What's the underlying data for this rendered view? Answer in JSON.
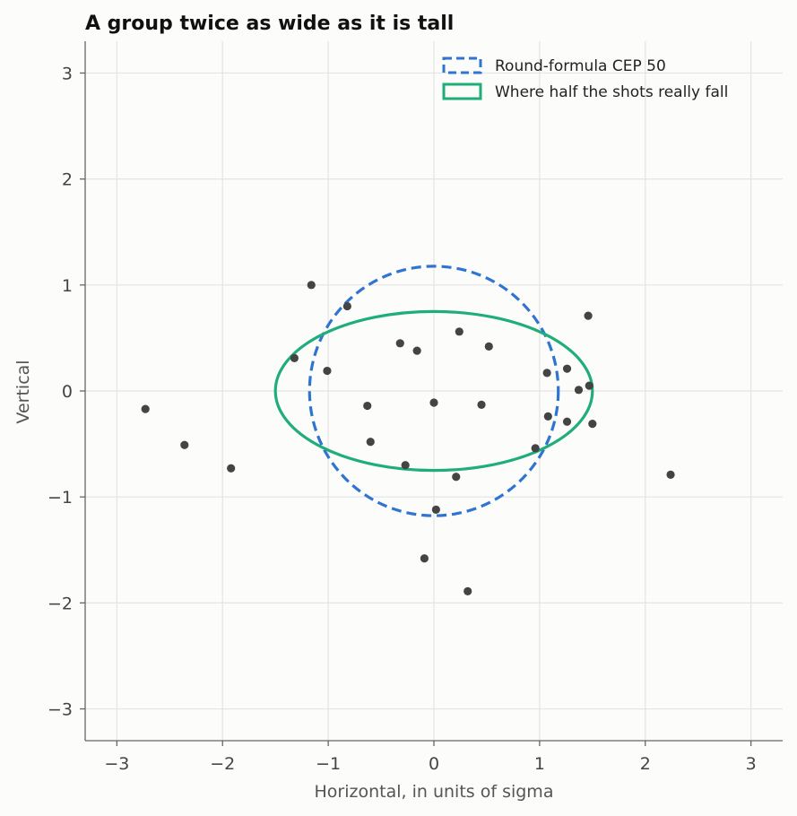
{
  "chart_data": {
    "type": "scatter",
    "title": "A group twice as wide as it is tall",
    "xlabel": "Horizontal, in units of sigma",
    "ylabel": "Vertical",
    "xlim": [
      -3.3,
      3.3
    ],
    "ylim": [
      -3.3,
      3.3
    ],
    "xticks": [
      -3,
      -2,
      -1,
      0,
      1,
      2,
      3
    ],
    "yticks": [
      -3,
      -2,
      -1,
      0,
      1,
      2,
      3
    ],
    "xtick_labels": [
      "−3",
      "−2",
      "−1",
      "0",
      "1",
      "2",
      "3"
    ],
    "ytick_labels": [
      "−3",
      "−2",
      "−1",
      "0",
      "1",
      "2",
      "3"
    ],
    "grid": true,
    "legend_position": "top-right",
    "legend": [
      {
        "label": "Round-formula CEP 50",
        "style": "dashed",
        "color": "#2f74d0"
      },
      {
        "label": "Where half the shots really fall",
        "style": "solid",
        "color": "#1fae7a"
      }
    ],
    "shapes": [
      {
        "name": "Round-formula CEP 50",
        "kind": "circle",
        "center": [
          0,
          0
        ],
        "rx": 1.177,
        "ry": 1.177,
        "color": "#2f74d0",
        "dashed": true
      },
      {
        "name": "Where half the shots really fall",
        "kind": "ellipse",
        "center": [
          0,
          0
        ],
        "rx": 1.5,
        "ry": 0.75,
        "color": "#1fae7a",
        "dashed": false
      }
    ],
    "points": [
      {
        "x": -2.73,
        "y": -0.17
      },
      {
        "x": -2.36,
        "y": -0.51
      },
      {
        "x": -1.92,
        "y": -0.73
      },
      {
        "x": -1.16,
        "y": 1.0
      },
      {
        "x": -0.82,
        "y": 0.8
      },
      {
        "x": -1.32,
        "y": 0.31
      },
      {
        "x": -1.01,
        "y": 0.19
      },
      {
        "x": -0.63,
        "y": -0.14
      },
      {
        "x": -0.6,
        "y": -0.48
      },
      {
        "x": -0.32,
        "y": 0.45
      },
      {
        "x": -0.16,
        "y": 0.38
      },
      {
        "x": 0.0,
        "y": -0.11
      },
      {
        "x": 0.24,
        "y": 0.56
      },
      {
        "x": 0.52,
        "y": 0.42
      },
      {
        "x": 0.45,
        "y": -0.13
      },
      {
        "x": -0.27,
        "y": -0.7
      },
      {
        "x": 0.21,
        "y": -0.81
      },
      {
        "x": 0.02,
        "y": -1.12
      },
      {
        "x": -0.09,
        "y": -1.58
      },
      {
        "x": 0.32,
        "y": -1.89
      },
      {
        "x": 0.96,
        "y": -0.54
      },
      {
        "x": 1.07,
        "y": 0.17
      },
      {
        "x": 1.26,
        "y": 0.21
      },
      {
        "x": 1.37,
        "y": 0.01
      },
      {
        "x": 1.47,
        "y": 0.05
      },
      {
        "x": 1.08,
        "y": -0.24
      },
      {
        "x": 1.26,
        "y": -0.29
      },
      {
        "x": 1.5,
        "y": -0.31
      },
      {
        "x": 1.46,
        "y": 0.71
      },
      {
        "x": 2.24,
        "y": -0.79
      }
    ]
  }
}
